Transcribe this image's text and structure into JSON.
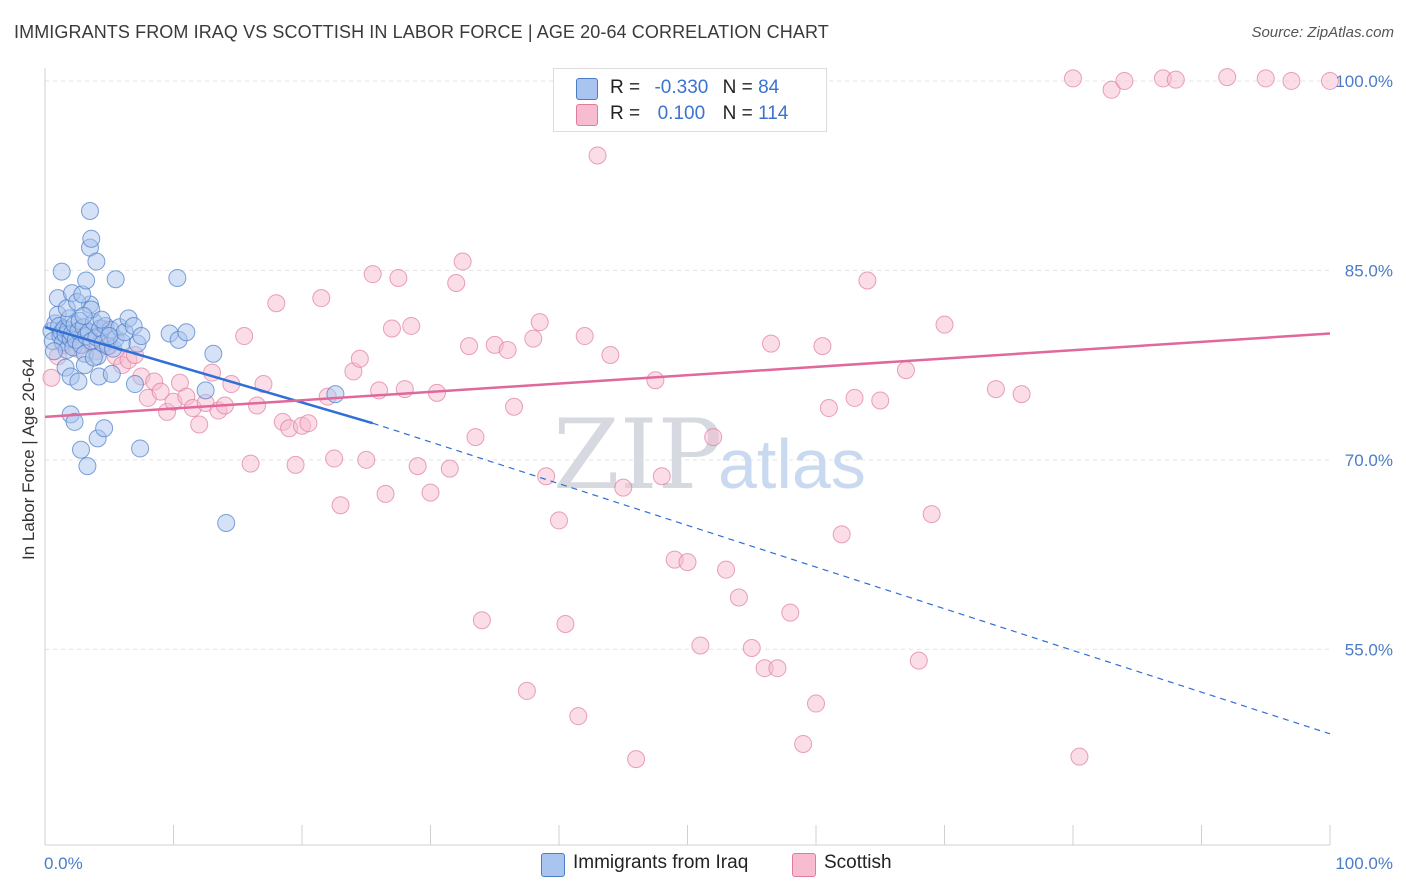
{
  "header": {
    "title": "IMMIGRANTS FROM IRAQ VS SCOTTISH IN LABOR FORCE | AGE 20-64 CORRELATION CHART",
    "source": "Source: ZipAtlas.com"
  },
  "watermark": {
    "zip": "ZIP",
    "atlas": "atlas"
  },
  "legend": {
    "r_label": "R =",
    "n_label": "N =",
    "rows": [
      {
        "r": "-0.330",
        "n": "84",
        "color": "#a9c4ee",
        "border": "#4a7cc7"
      },
      {
        "r": "0.100",
        "n": "114",
        "color": "#f7bcd0",
        "border": "#e07a9f"
      }
    ]
  },
  "bottom_legend": [
    "Immigrants from Iraq",
    "Scottish"
  ],
  "colors": {
    "blue_fill": "#a9c4ee",
    "blue_stroke": "#4a7cc7",
    "blue_line": "#2f6fd6",
    "pink_fill": "#f7bcd0",
    "pink_stroke": "#e07a9f",
    "pink_line": "#e0689a",
    "grid": "#e4e4e4",
    "tick_text": "#4a7cc7"
  },
  "chart_data": {
    "type": "scatter",
    "title": "IMMIGRANTS FROM IRAQ VS SCOTTISH IN LABOR FORCE | AGE 20-64 CORRELATION CHART",
    "xlabel": "",
    "ylabel": "In Labor Force | Age 20-64",
    "xlim": [
      0,
      100
    ],
    "ylim": [
      39.5,
      101.5
    ],
    "x_tick_labels": [
      "0.0%",
      "100.0%"
    ],
    "y_ticks": [
      55,
      70,
      85,
      100
    ],
    "y_tick_labels": [
      "55.0%",
      "70.0%",
      "85.0%",
      "100.0%"
    ],
    "grid": true,
    "legend_position": "top-center",
    "series": [
      {
        "name": "Immigrants from Iraq",
        "R": -0.33,
        "N": 84,
        "trend": {
          "x0": 0,
          "y0": 80.5,
          "x1": 25.5,
          "y1": 72.9,
          "dash_to_x": 100,
          "dash_to_y": 48.3
        },
        "points": [
          [
            0.5,
            80.2
          ],
          [
            0.6,
            79.4
          ],
          [
            0.8,
            80.8
          ],
          [
            1.0,
            81.5
          ],
          [
            1.1,
            80.6
          ],
          [
            1.2,
            79.8
          ],
          [
            1.3,
            80.1
          ],
          [
            1.4,
            79.3
          ],
          [
            1.5,
            80.4
          ],
          [
            1.6,
            79.9
          ],
          [
            1.7,
            78.7
          ],
          [
            1.8,
            80.3
          ],
          [
            1.9,
            81.2
          ],
          [
            2.0,
            79.6
          ],
          [
            2.1,
            80.0
          ],
          [
            2.2,
            78.9
          ],
          [
            2.3,
            80.7
          ],
          [
            2.4,
            79.5
          ],
          [
            2.6,
            80.2
          ],
          [
            2.7,
            81.0
          ],
          [
            2.8,
            79.1
          ],
          [
            3.0,
            80.5
          ],
          [
            3.1,
            78.4
          ],
          [
            3.2,
            79.8
          ],
          [
            3.4,
            80.1
          ],
          [
            3.5,
            82.3
          ],
          [
            3.6,
            79.4
          ],
          [
            3.8,
            80.9
          ],
          [
            4.0,
            79.7
          ],
          [
            4.1,
            78.2
          ],
          [
            4.3,
            80.4
          ],
          [
            4.5,
            79.2
          ],
          [
            4.7,
            80.6
          ],
          [
            4.9,
            79.0
          ],
          [
            5.1,
            80.3
          ],
          [
            5.3,
            78.8
          ],
          [
            5.5,
            79.6
          ],
          [
            5.8,
            80.5
          ],
          [
            6.0,
            79.3
          ],
          [
            6.2,
            80.1
          ],
          [
            0.7,
            78.6
          ],
          [
            1.0,
            82.8
          ],
          [
            1.3,
            84.9
          ],
          [
            1.7,
            82.0
          ],
          [
            2.1,
            83.2
          ],
          [
            2.5,
            82.5
          ],
          [
            2.9,
            83.1
          ],
          [
            3.2,
            84.2
          ],
          [
            3.6,
            81.9
          ],
          [
            1.6,
            77.3
          ],
          [
            2.0,
            76.6
          ],
          [
            2.6,
            76.2
          ],
          [
            3.1,
            77.5
          ],
          [
            3.8,
            78.1
          ],
          [
            4.2,
            76.6
          ],
          [
            5.2,
            76.8
          ],
          [
            2.0,
            73.6
          ],
          [
            2.3,
            73.0
          ],
          [
            2.8,
            70.8
          ],
          [
            3.3,
            69.5
          ],
          [
            4.1,
            71.7
          ],
          [
            4.6,
            72.5
          ],
          [
            7.2,
            79.2
          ],
          [
            7.0,
            76.0
          ],
          [
            7.4,
            70.9
          ],
          [
            9.7,
            80.0
          ],
          [
            10.4,
            79.5
          ],
          [
            11.0,
            80.1
          ],
          [
            10.3,
            84.4
          ],
          [
            13.1,
            78.4
          ],
          [
            12.5,
            75.5
          ],
          [
            14.1,
            65.0
          ],
          [
            22.6,
            75.2
          ],
          [
            3.5,
            89.7
          ],
          [
            3.5,
            86.8
          ],
          [
            3.6,
            87.5
          ],
          [
            4.0,
            85.7
          ],
          [
            5.5,
            84.3
          ],
          [
            6.5,
            81.2
          ],
          [
            6.9,
            80.6
          ],
          [
            3.0,
            81.4
          ],
          [
            4.4,
            81.1
          ],
          [
            5.0,
            79.8
          ],
          [
            7.5,
            79.8
          ]
        ]
      },
      {
        "name": "Scottish",
        "R": 0.1,
        "N": 114,
        "trend": {
          "x0": 0,
          "y0": 73.4,
          "x1": 100,
          "y1": 80.0
        },
        "points": [
          [
            0.5,
            76.5
          ],
          [
            1.0,
            78.2
          ],
          [
            1.5,
            79.1
          ],
          [
            2.0,
            79.6
          ],
          [
            2.5,
            78.8
          ],
          [
            3.0,
            80.1
          ],
          [
            3.5,
            79.3
          ],
          [
            4.0,
            78.6
          ],
          [
            4.5,
            80.4
          ],
          [
            5.0,
            79.0
          ],
          [
            5.5,
            78.2
          ],
          [
            6.0,
            77.5
          ],
          [
            6.5,
            77.9
          ],
          [
            7.0,
            78.3
          ],
          [
            7.5,
            76.6
          ],
          [
            8.0,
            74.9
          ],
          [
            8.5,
            76.2
          ],
          [
            9.0,
            75.4
          ],
          [
            9.5,
            73.8
          ],
          [
            10.0,
            74.6
          ],
          [
            10.5,
            76.1
          ],
          [
            11.0,
            75.0
          ],
          [
            11.5,
            74.1
          ],
          [
            12.0,
            72.8
          ],
          [
            12.5,
            74.5
          ],
          [
            13.0,
            76.9
          ],
          [
            13.5,
            73.9
          ],
          [
            14.0,
            74.3
          ],
          [
            14.5,
            76.0
          ],
          [
            15.5,
            79.8
          ],
          [
            16.0,
            69.7
          ],
          [
            16.5,
            74.3
          ],
          [
            17.0,
            76.0
          ],
          [
            18.0,
            82.4
          ],
          [
            18.5,
            73.0
          ],
          [
            19.0,
            72.5
          ],
          [
            19.5,
            69.6
          ],
          [
            20.0,
            72.7
          ],
          [
            20.5,
            72.9
          ],
          [
            21.5,
            82.8
          ],
          [
            22.0,
            75.0
          ],
          [
            22.5,
            70.1
          ],
          [
            23.0,
            66.4
          ],
          [
            24.0,
            77.0
          ],
          [
            24.5,
            78.0
          ],
          [
            25.0,
            70.0
          ],
          [
            25.5,
            84.7
          ],
          [
            26.0,
            75.5
          ],
          [
            26.5,
            67.3
          ],
          [
            27.0,
            80.4
          ],
          [
            27.5,
            84.4
          ],
          [
            28.0,
            75.6
          ],
          [
            28.5,
            80.6
          ],
          [
            29.0,
            69.5
          ],
          [
            30.0,
            67.4
          ],
          [
            30.5,
            75.3
          ],
          [
            31.5,
            69.3
          ],
          [
            32.0,
            84.0
          ],
          [
            32.5,
            85.7
          ],
          [
            33.0,
            79.0
          ],
          [
            33.5,
            71.8
          ],
          [
            34.0,
            57.3
          ],
          [
            35.0,
            79.1
          ],
          [
            36.0,
            78.7
          ],
          [
            36.5,
            74.2
          ],
          [
            37.5,
            51.7
          ],
          [
            38.0,
            79.6
          ],
          [
            38.5,
            80.9
          ],
          [
            39.0,
            68.7
          ],
          [
            40.0,
            65.2
          ],
          [
            40.5,
            57.0
          ],
          [
            41.5,
            49.7
          ],
          [
            42.0,
            79.8
          ],
          [
            43.0,
            94.1
          ],
          [
            44.0,
            78.3
          ],
          [
            45.0,
            67.8
          ],
          [
            46.0,
            46.3
          ],
          [
            47.5,
            76.3
          ],
          [
            48.0,
            68.7
          ],
          [
            49.0,
            62.1
          ],
          [
            50.0,
            61.9
          ],
          [
            51.0,
            55.3
          ],
          [
            52.0,
            71.8
          ],
          [
            53.0,
            61.3
          ],
          [
            54.0,
            59.1
          ],
          [
            55.0,
            55.1
          ],
          [
            56.0,
            53.5
          ],
          [
            56.5,
            79.2
          ],
          [
            57.0,
            53.5
          ],
          [
            58.0,
            57.9
          ],
          [
            59.0,
            47.5
          ],
          [
            60.0,
            50.7
          ],
          [
            60.5,
            79.0
          ],
          [
            61.0,
            74.1
          ],
          [
            62.0,
            64.1
          ],
          [
            63.0,
            74.9
          ],
          [
            64.0,
            84.2
          ],
          [
            65.0,
            74.7
          ],
          [
            67.0,
            77.1
          ],
          [
            68.0,
            54.1
          ],
          [
            69.0,
            65.7
          ],
          [
            70.0,
            80.7
          ],
          [
            74.0,
            75.6
          ],
          [
            76.0,
            75.2
          ],
          [
            80.0,
            100.2
          ],
          [
            83.0,
            99.3
          ],
          [
            84.0,
            100.0
          ],
          [
            87.0,
            100.2
          ],
          [
            88.0,
            100.1
          ],
          [
            92.0,
            100.3
          ],
          [
            95.0,
            100.2
          ],
          [
            97.0,
            100.0
          ],
          [
            100.0,
            100.0
          ],
          [
            80.5,
            46.5
          ]
        ]
      }
    ]
  }
}
